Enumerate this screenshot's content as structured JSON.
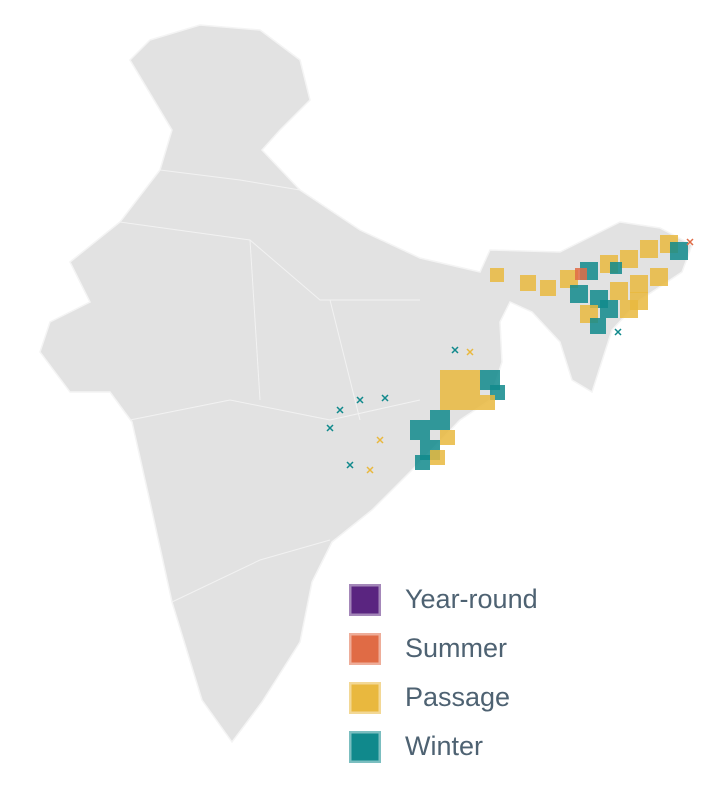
{
  "legend": {
    "items": [
      {
        "label": "Year-round",
        "color": "#5a2580"
      },
      {
        "label": "Summer",
        "color": "#e06b45"
      },
      {
        "label": "Passage",
        "color": "#e9b83e"
      },
      {
        "label": "Winter",
        "color": "#10898c"
      }
    ]
  }
}
